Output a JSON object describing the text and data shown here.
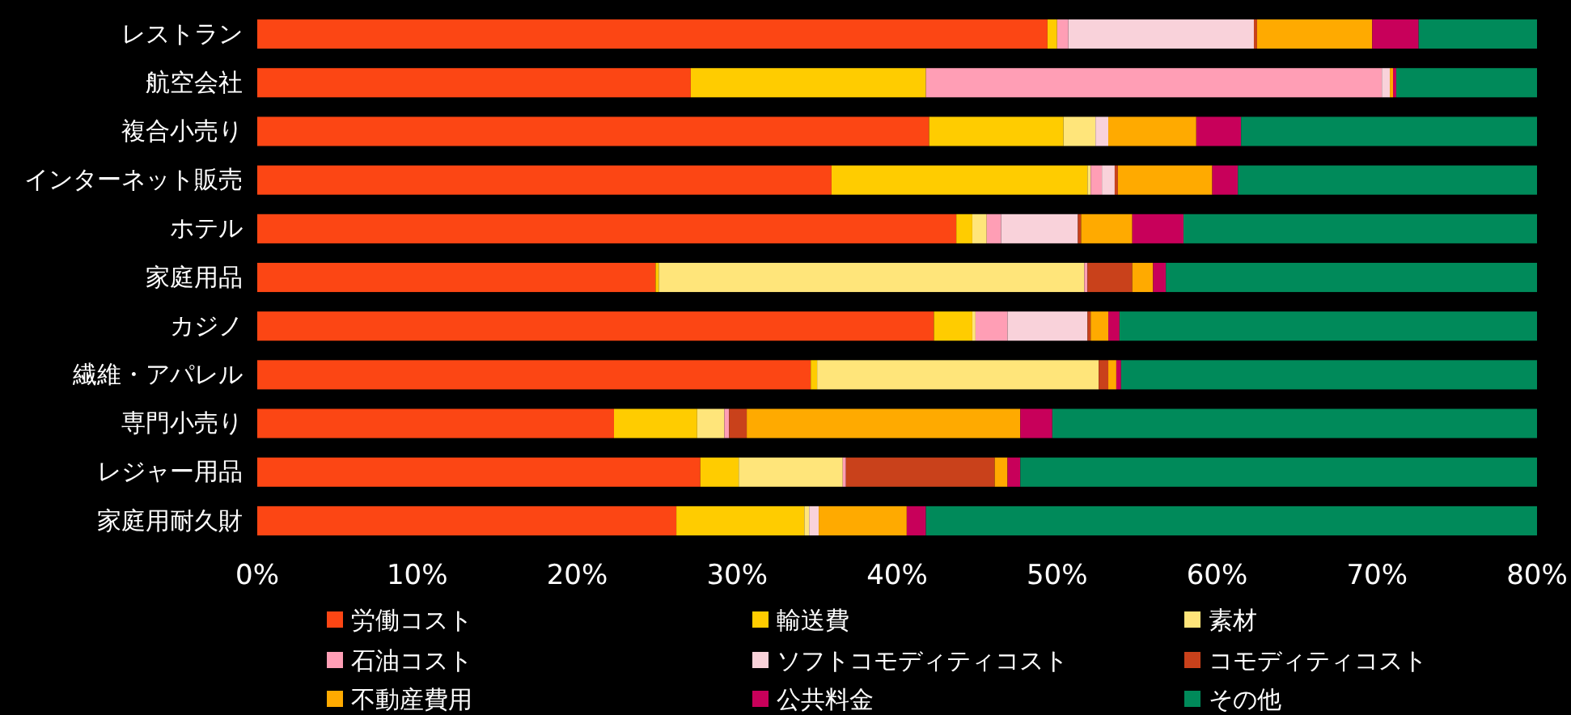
{
  "chart_data": {
    "type": "bar",
    "orientation": "horizontal",
    "stacked": true,
    "legend": "bottom",
    "categories": [
      "レストラン",
      "航空会社",
      "複合小売り",
      "インターネット販売",
      "ホテル",
      "家庭用品",
      "カジノ",
      "繊維・アパレル",
      "専門小売り",
      "レジャー用品",
      "家庭用耐久財"
    ],
    "xlim": [
      0,
      80
    ],
    "xticks": [
      {
        "value": 0,
        "label": "0%"
      },
      {
        "value": 10,
        "label": "10%"
      },
      {
        "value": 20,
        "label": "20%"
      },
      {
        "value": 30,
        "label": "30%"
      },
      {
        "value": 40,
        "label": "40%"
      },
      {
        "value": 50,
        "label": "50%"
      },
      {
        "value": 60,
        "label": "60%"
      },
      {
        "value": 70,
        "label": "70%"
      },
      {
        "value": 80,
        "label": "80%"
      }
    ],
    "series": [
      {
        "name": "労働コスト",
        "color": "#fc4614",
        "values": [
          49.4,
          27.1,
          42.0,
          35.9,
          43.7,
          24.9,
          42.3,
          34.6,
          22.3,
          27.7,
          26.2
        ]
      },
      {
        "name": "輸送費",
        "color": "#ffcc00",
        "values": [
          0.6,
          14.7,
          8.4,
          16.0,
          1.0,
          0.2,
          2.4,
          0.4,
          5.2,
          2.4,
          8.0
        ]
      },
      {
        "name": "素材",
        "color": "#ffe57a",
        "values": [
          0,
          0,
          2.0,
          0.2,
          0.9,
          26.6,
          0.2,
          17.6,
          1.7,
          6.5,
          0.3
        ]
      },
      {
        "name": "石油コスト",
        "color": "#ff9eb5",
        "values": [
          0.7,
          28.5,
          0,
          0.7,
          0.9,
          0.2,
          2.0,
          0,
          0.3,
          0.2,
          0
        ]
      },
      {
        "name": "ソフトコモディティコスト",
        "color": "#f9d2da",
        "values": [
          11.6,
          0.5,
          0.8,
          0.8,
          4.8,
          0,
          5.0,
          0,
          0,
          0,
          0.6
        ]
      },
      {
        "name": "コモディティコスト",
        "color": "#c9411b",
        "values": [
          0.2,
          0,
          0,
          0.2,
          0.2,
          2.8,
          0.2,
          0.6,
          1.1,
          9.3,
          0
        ]
      },
      {
        "name": "不動産費用",
        "color": "#ffaa00",
        "values": [
          7.2,
          0.2,
          5.5,
          5.9,
          3.2,
          1.3,
          1.1,
          0.5,
          17.1,
          0.8,
          5.5
        ]
      },
      {
        "name": "公共料金",
        "color": "#c8005a",
        "values": [
          2.9,
          0.2,
          2.8,
          1.6,
          3.2,
          0.8,
          0.7,
          0.3,
          2.0,
          0.8,
          1.2
        ]
      },
      {
        "name": "その他",
        "color": "#008a5a",
        "values": [
          7.4,
          8.8,
          18.5,
          18.7,
          22.1,
          23.2,
          26.1,
          26.0,
          30.3,
          32.3,
          38.2
        ]
      }
    ]
  }
}
